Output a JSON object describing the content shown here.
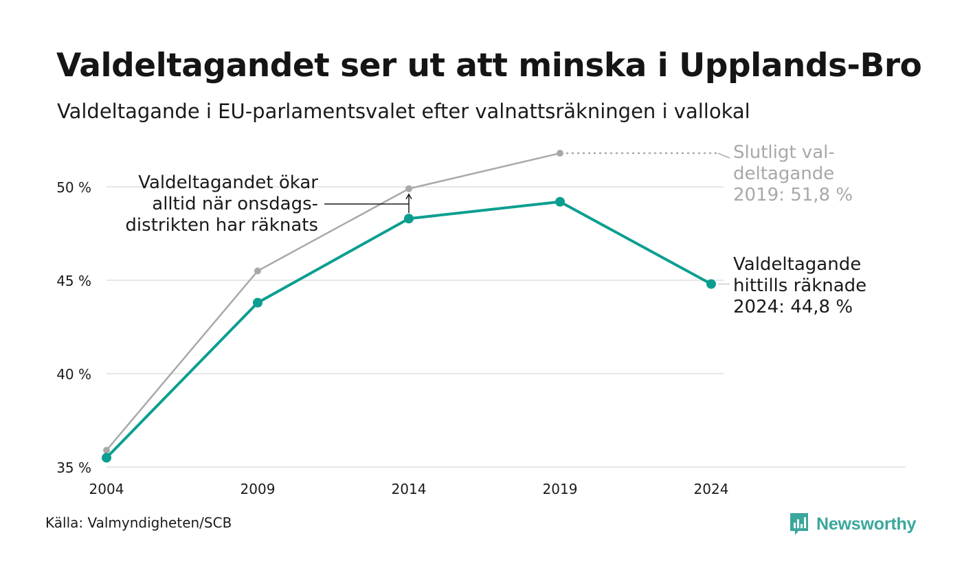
{
  "header": {
    "title": "Valdeltagandet ser ut att minska i Upplands-Bro",
    "subtitle": "Valdeltagande i EU-parlamentsvalet efter valnattsräkningen i vallokal"
  },
  "footer": {
    "source": "Källa: Valmyndigheten/SCB",
    "brand": "Newsworthy"
  },
  "colors": {
    "primary": "#0b9e90",
    "final": "#a8a8a8",
    "grid": "#e6e6e6",
    "text": "#1a1a1a",
    "brand": "#3aa79b"
  },
  "icons": {
    "logo": "newsworthy-logo-icon"
  },
  "chart_data": {
    "type": "line",
    "x": [
      2004,
      2009,
      2014,
      2019,
      2024
    ],
    "x_tick_labels": [
      "2004",
      "2009",
      "2014",
      "2019",
      "2024"
    ],
    "ylim": [
      35,
      52.5
    ],
    "y_ticks": [
      35,
      40,
      45,
      50
    ],
    "y_tick_labels": [
      "35 %",
      "40 %",
      "45 %",
      "50 %"
    ],
    "grid": true,
    "series": [
      {
        "key": "final",
        "values": [
          35.9,
          45.5,
          49.9,
          51.8,
          null
        ]
      },
      {
        "key": "count",
        "values": [
          35.5,
          43.8,
          48.3,
          49.2,
          44.8
        ]
      }
    ],
    "annotations": {
      "final_label": [
        "Slutligt val-",
        "deltagande",
        "2019: 51,8 %"
      ],
      "count_label": [
        "Valdeltagande",
        "hittills räknade",
        "2024: 44,8 %"
      ],
      "note": [
        "Valdeltagandet ökar",
        "alltid när onsdags-",
        "distrikten har räknats"
      ]
    }
  }
}
